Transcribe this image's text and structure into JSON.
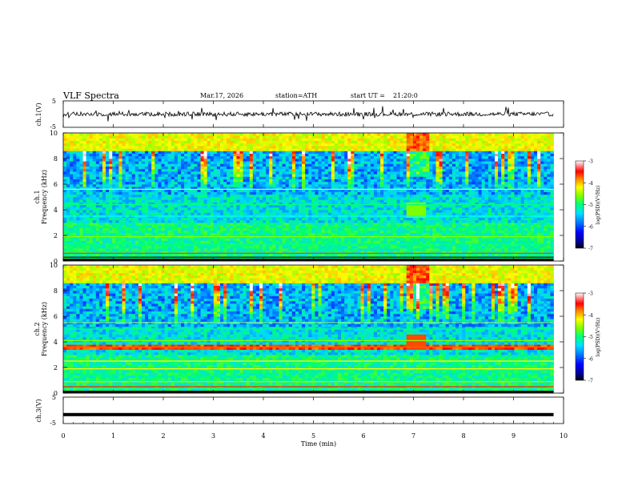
{
  "header": {
    "title": "VLF Spectra",
    "date": "Mar.17, 2026",
    "station": "station=ATH",
    "start": "start UT =",
    "start_time": "21:20:0"
  },
  "chart_data": [
    {
      "type": "line",
      "panel": "ch1-waveform",
      "ylabel": "ch.1(V)",
      "ylim": [
        -5,
        5
      ],
      "y_ticks": [
        "5",
        "-5"
      ],
      "xlim": [
        0,
        10
      ],
      "baseline": 0,
      "amplitude_note_values": [
        -1.5,
        1.5
      ]
    },
    {
      "type": "heatmap",
      "panel": "ch1-spectrogram",
      "ylabel_channel": "ch.1",
      "ylabel": "Frequency (kHz)",
      "ylim": [
        0,
        10
      ],
      "y_ticks": [
        "0",
        "2",
        "4",
        "6",
        "8",
        "10"
      ],
      "xlim": [
        0,
        9.8
      ],
      "colorbar": {
        "label": "log(PSD)(V²/Hz)",
        "ticks": [
          "-3",
          "-4",
          "-5",
          "-6",
          "-7"
        ],
        "range": [
          -7,
          -3
        ]
      }
    },
    {
      "type": "heatmap",
      "panel": "ch2-spectrogram",
      "ylabel_channel": "ch.2",
      "ylabel": "Frequency (kHz)",
      "ylim": [
        0,
        10
      ],
      "y_ticks": [
        "0",
        "2",
        "4",
        "6",
        "8",
        "10"
      ],
      "xlim": [
        0,
        9.8
      ],
      "colorbar": {
        "label": "log(PSD)(V²/Hz)",
        "ticks": [
          "-3",
          "-4",
          "-5",
          "-6",
          "-7"
        ],
        "range": [
          -7,
          -3
        ]
      }
    },
    {
      "type": "line",
      "panel": "ch3-waveform",
      "ylabel": "ch.3(V)",
      "ylim": [
        -5,
        5
      ],
      "y_ticks": [
        "5",
        "-5"
      ],
      "xlim": [
        0,
        10
      ],
      "baseline": -1.6
    }
  ],
  "x_axis": {
    "label": "Time (min)",
    "ticks": [
      "0",
      "1",
      "2",
      "3",
      "4",
      "5",
      "6",
      "7",
      "8",
      "9",
      "10"
    ]
  },
  "colors": {
    "colormap": [
      "#000000",
      "#0000a0",
      "#0000ff",
      "#0078ff",
      "#00d8ff",
      "#00ff70",
      "#7cff00",
      "#ffff00",
      "#ff9000",
      "#ff0000",
      "#ffffff"
    ]
  }
}
